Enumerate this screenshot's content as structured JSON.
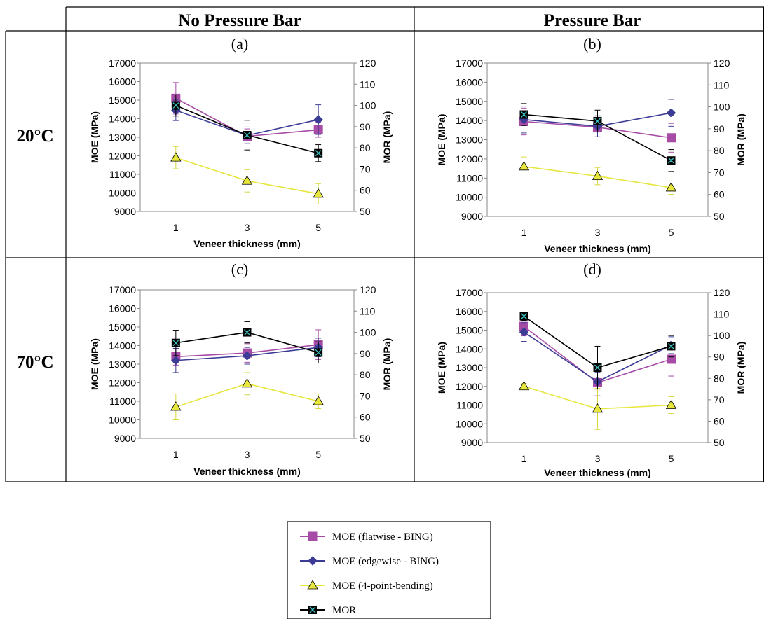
{
  "header": {
    "col1": "No Pressure Bar",
    "col2": "Pressure Bar",
    "row1": "20°C",
    "row2": "70°C"
  },
  "legend": [
    {
      "label": "MOE (flatwise - BING)",
      "color": "#a64ca6",
      "marker": "square"
    },
    {
      "label": "MOE (edgewise - BING)",
      "color": "#3c3c96",
      "marker": "diamond"
    },
    {
      "label": "MOE (4-point-bending)",
      "color": "#e6e63c",
      "marker": "triangle"
    },
    {
      "label": "MOR",
      "color": "#000000",
      "marker": "xsquare"
    }
  ],
  "chart_data": [
    {
      "panel": "(a)",
      "type": "line",
      "x": [
        1,
        3,
        5
      ],
      "xlabel": "Veneer thickness (mm)",
      "ylabel": "MOE (MPa)",
      "ylim": [
        9000,
        17000
      ],
      "yticks": [
        9000,
        10000,
        11000,
        12000,
        13000,
        14000,
        15000,
        16000,
        17000
      ],
      "y2label": "MOR (MPa)",
      "y2lim": [
        50,
        120
      ],
      "y2ticks": [
        50,
        60,
        70,
        80,
        90,
        100,
        110,
        120
      ],
      "series": [
        {
          "name": "MOE (flatwise - BING)",
          "axis": "left",
          "values": [
            15100,
            13050,
            13400
          ],
          "err": [
            850,
            400,
            400
          ]
        },
        {
          "name": "MOE (edgewise - BING)",
          "axis": "left",
          "values": [
            14450,
            13100,
            13950
          ],
          "err": [
            550,
            450,
            800
          ]
        },
        {
          "name": "MOE (4-point-bending)",
          "axis": "left",
          "values": [
            11900,
            10650,
            9950
          ],
          "err": [
            600,
            600,
            550
          ]
        },
        {
          "name": "MOR",
          "axis": "right",
          "values": [
            100,
            86,
            77.5
          ],
          "err": [
            5,
            7,
            4
          ]
        }
      ]
    },
    {
      "panel": "(b)",
      "type": "line",
      "x": [
        1,
        3,
        5
      ],
      "xlabel": "Veneer thickness (mm)",
      "ylabel": "MOE (MPa)",
      "ylim": [
        9000,
        17000
      ],
      "yticks": [
        9000,
        10000,
        11000,
        12000,
        13000,
        14000,
        15000,
        16000,
        17000
      ],
      "y2label": "MOR (MPa)",
      "y2lim": [
        50,
        120
      ],
      "y2ticks": [
        50,
        60,
        70,
        80,
        90,
        100,
        110,
        120
      ],
      "series": [
        {
          "name": "MOE (flatwise - BING)",
          "axis": "left",
          "values": [
            13950,
            13650,
            13100
          ],
          "err": [
            700,
            500,
            750
          ]
        },
        {
          "name": "MOE (edgewise - BING)",
          "axis": "left",
          "values": [
            14050,
            13700,
            14400
          ],
          "err": [
            700,
            550,
            700
          ]
        },
        {
          "name": "MOE (4-point-bending)",
          "axis": "left",
          "values": [
            11600,
            11100,
            10500
          ],
          "err": [
            500,
            450,
            350
          ]
        },
        {
          "name": "MOR",
          "axis": "right",
          "values": [
            96.5,
            93.5,
            75.5
          ],
          "err": [
            5,
            5,
            5
          ]
        }
      ]
    },
    {
      "panel": "(c)",
      "type": "line",
      "x": [
        1,
        3,
        5
      ],
      "xlabel": "Veneer thickness (mm)",
      "ylabel": "MOE (MPa)",
      "ylim": [
        9000,
        17000
      ],
      "yticks": [
        9000,
        10000,
        11000,
        12000,
        13000,
        14000,
        15000,
        16000,
        17000
      ],
      "y2label": "MOR (MPa)",
      "y2lim": [
        50,
        120
      ],
      "y2ticks": [
        50,
        60,
        70,
        80,
        90,
        100,
        110,
        120
      ],
      "series": [
        {
          "name": "MOE (flatwise - BING)",
          "axis": "left",
          "values": [
            13400,
            13600,
            14050
          ],
          "err": [
            450,
            500,
            800
          ]
        },
        {
          "name": "MOE (edgewise - BING)",
          "axis": "left",
          "values": [
            13200,
            13450,
            13900
          ],
          "err": [
            650,
            450,
            500
          ]
        },
        {
          "name": "MOE (4-point-bending)",
          "axis": "left",
          "values": [
            10700,
            11950,
            11000
          ],
          "err": [
            700,
            600,
            400
          ]
        },
        {
          "name": "MOR",
          "axis": "right",
          "values": [
            95,
            100,
            90.5
          ],
          "err": [
            6,
            5,
            5
          ]
        }
      ]
    },
    {
      "panel": "(d)",
      "type": "line",
      "x": [
        1,
        3,
        5
      ],
      "xlabel": "Veneer thickness (mm)",
      "ylabel": "MOE (MPa)",
      "ylim": [
        9000,
        17000
      ],
      "yticks": [
        9000,
        10000,
        11000,
        12000,
        13000,
        14000,
        15000,
        16000,
        17000
      ],
      "y2label": "MOR (MPa)",
      "y2lim": [
        50,
        120
      ],
      "y2ticks": [
        50,
        60,
        70,
        80,
        90,
        100,
        110,
        120
      ],
      "series": [
        {
          "name": "MOE (flatwise - BING)",
          "axis": "left",
          "values": [
            15200,
            12200,
            13450
          ],
          "err": [
            500,
            700,
            900
          ]
        },
        {
          "name": "MOE (edgewise - BING)",
          "axis": "left",
          "values": [
            14900,
            12250,
            14200
          ],
          "err": [
            500,
            500,
            450
          ]
        },
        {
          "name": "MOE (4-point-bending)",
          "axis": "left",
          "values": [
            12000,
            10800,
            11000
          ],
          "err": [
            150,
            1100,
            450
          ]
        },
        {
          "name": "MOR",
          "axis": "right",
          "values": [
            109,
            85,
            95
          ],
          "err": [
            2,
            10,
            5
          ]
        }
      ]
    }
  ]
}
